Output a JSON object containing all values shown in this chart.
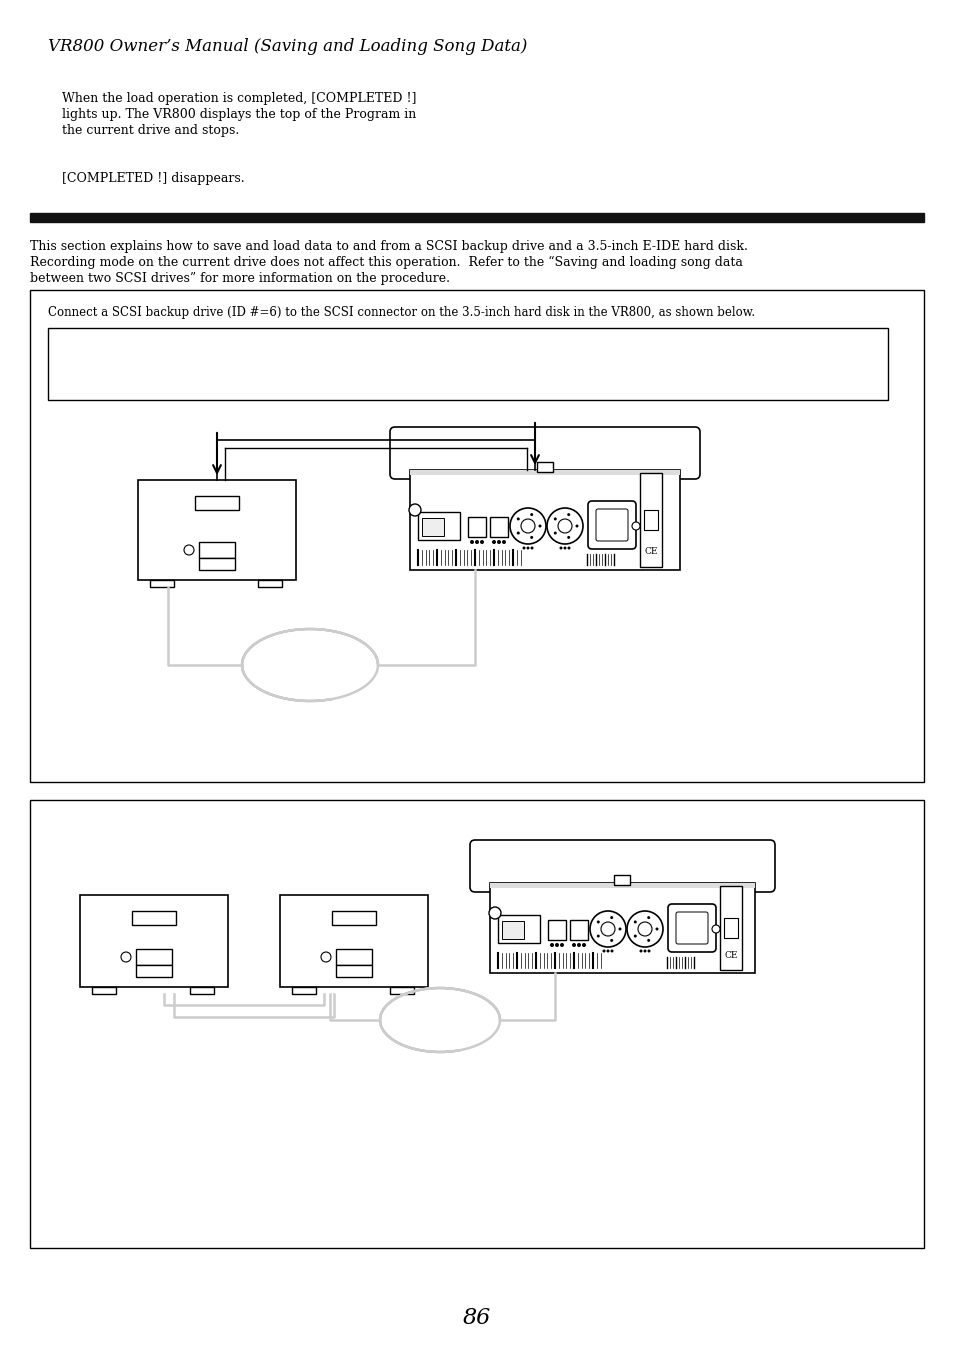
{
  "title": "VR800 Owner’s Manual (Saving and Loading Song Data)",
  "para1_line1": "When the load operation is completed, [COMPLETED !]",
  "para1_line2": "lights up. The VR800 displays the top of the Program in",
  "para1_line3": "the current drive and stops.",
  "para2": "[COMPLETED !] disappears.",
  "section_line1": "This section explains how to save and load data to and from a SCSI backup drive and a 3.5-inch E-IDE hard disk.",
  "section_line2": "Recording mode on the current drive does not affect this operation.  Refer to the “Saving and loading song data",
  "section_line3": "between two SCSI drives” for more information on the procedure.",
  "box1_text": "Connect a SCSI backup drive (ID #=6) to the SCSI connector on the 3.5-inch hard disk in the VR800, as shown below.",
  "page_number": "86",
  "bg_color": "#ffffff",
  "text_color": "#000000",
  "cable_color": "#cccccc",
  "divider_color": "#111111"
}
